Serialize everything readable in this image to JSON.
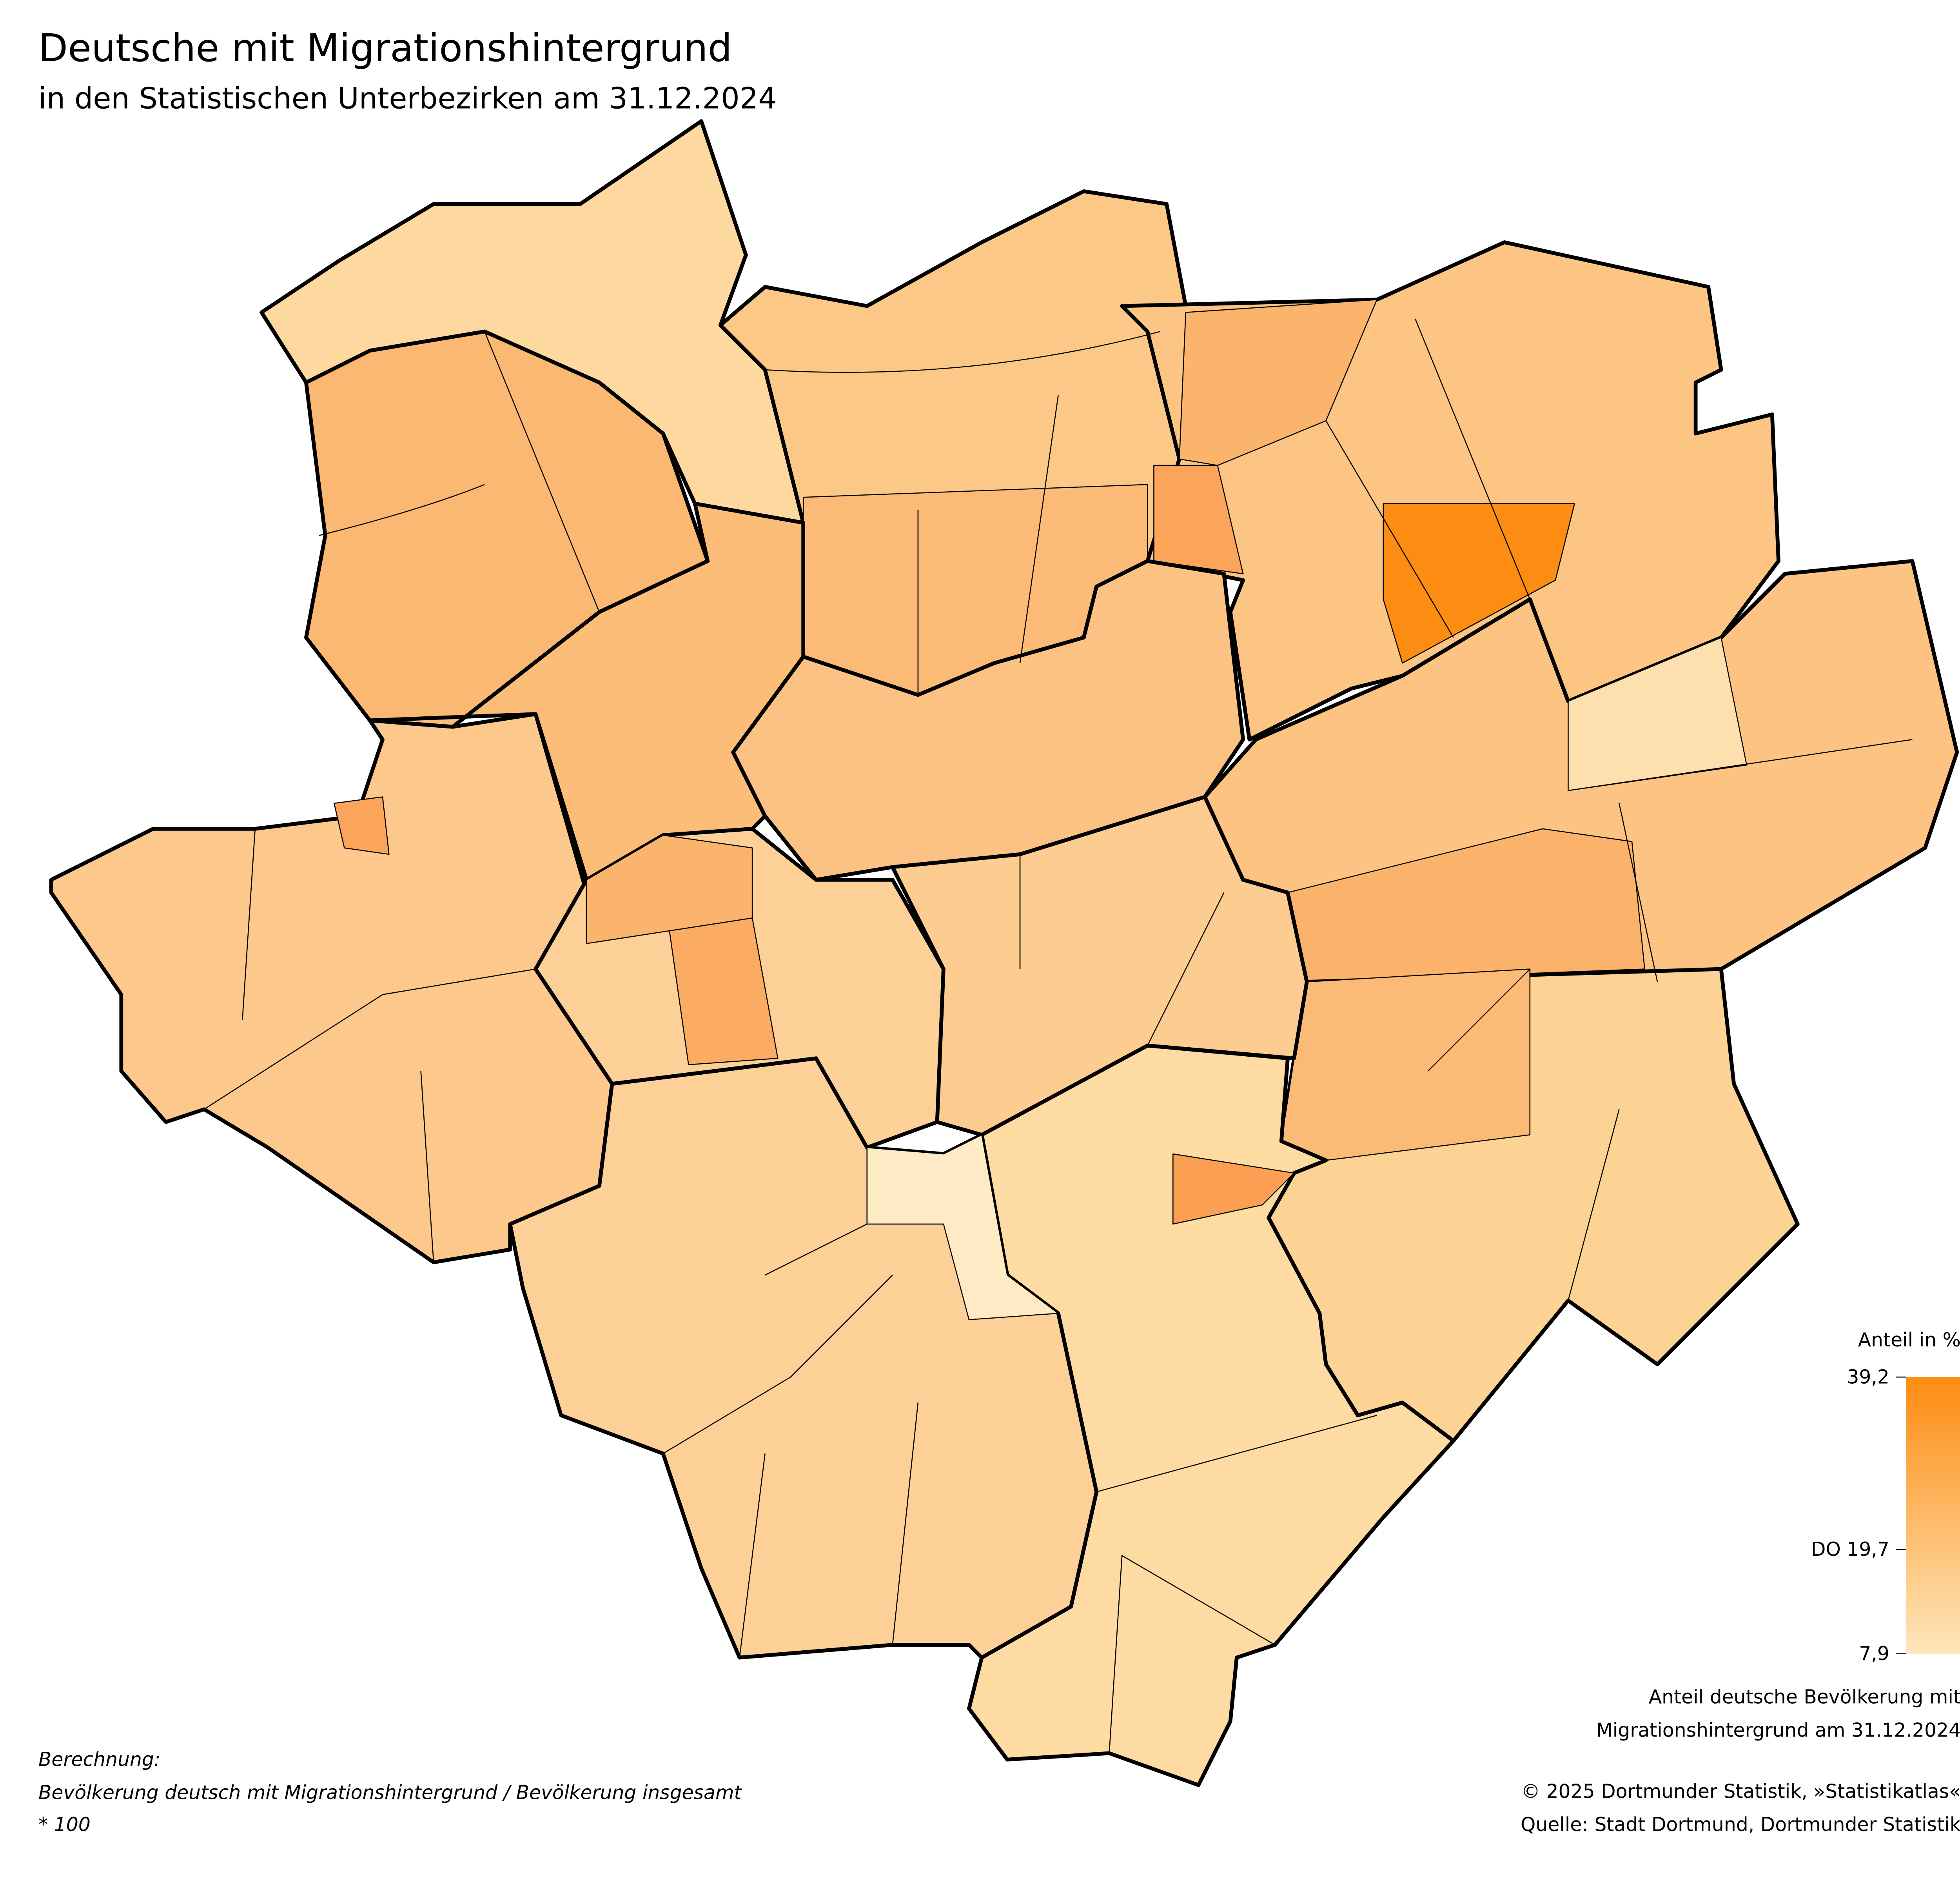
{
  "title": "Deutsche mit Migrationshintergrund",
  "subtitle": "in den Statistischen Unterbezirken am 31.12.2024",
  "legend": {
    "title": "Anteil in %",
    "ticks": [
      {
        "value": 39.2,
        "label": "39,2"
      },
      {
        "value": 19.7,
        "label": "DO 19,7"
      },
      {
        "value": 7.9,
        "label": "7,9"
      }
    ],
    "colors": [
      "#fde6bb",
      "#fd8c12"
    ],
    "caption": [
      "Anteil deutsche Bevölkerung mit",
      "Migrationshintergrund am 31.12.2024"
    ]
  },
  "note": {
    "label": "Berechnung:",
    "lines": [
      "Bevölkerung deutsch mit Migrationshintergrund / Bevölkerung insgesamt",
      "* 100"
    ]
  },
  "credits": [
    "© 2025 Dortmunder Statistik, »Statistikatlas«",
    "Quelle: Stadt Dortmund, Dortmunder Statistik"
  ]
}
